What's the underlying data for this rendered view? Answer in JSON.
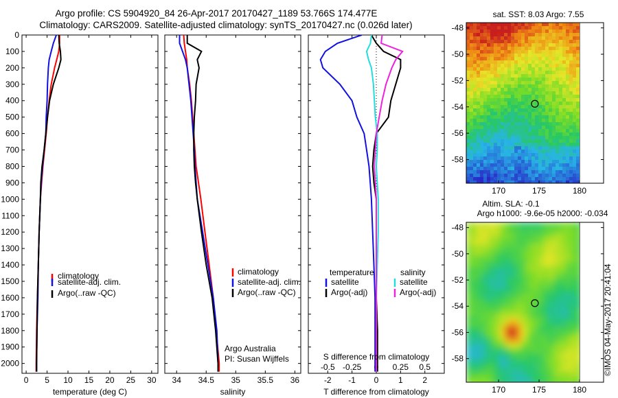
{
  "header": {
    "line1": "Argo profile: CS 5904920_84 26-Apr-2017 20170427_1189 53.766S 174.477E",
    "line2": "Climatology: CARS2009. Satellite-adjusted climatology: synTS_20170427.nc (0.026d later)"
  },
  "colors": {
    "climatology": "#ff0000",
    "satellite": "#1010e0",
    "argo": "#000000",
    "satellite_salinity": "#22dddd",
    "argo_salinity": "#ee22dd"
  },
  "credit": "©IMOS 04-May-2017 20:41:04",
  "depth_ticks": [
    0,
    100,
    200,
    300,
    400,
    500,
    600,
    700,
    800,
    900,
    1000,
    1100,
    1200,
    1300,
    1400,
    1500,
    1600,
    1700,
    1800,
    1900,
    2000
  ],
  "chart_data": [
    {
      "type": "line",
      "id": "temperature",
      "xlabel": "temperature (deg C)",
      "ylabel": "",
      "xlim": [
        -1,
        31.5
      ],
      "ylim": [
        2060,
        0
      ],
      "xticks": [
        0,
        5,
        10,
        15,
        20,
        25,
        30
      ],
      "legend": {
        "placement": "bottom-middle",
        "entries": [
          "climatology",
          "satellite-adj. clim.",
          "Argo(..raw -QC)"
        ]
      },
      "y": [
        0,
        50,
        100,
        150,
        200,
        300,
        400,
        500,
        600,
        700,
        800,
        900,
        1000,
        1200,
        1400,
        1600,
        1800,
        2000,
        2050
      ],
      "series": [
        {
          "name": "climatology",
          "values": [
            8.0,
            8.0,
            7.8,
            7.3,
            6.8,
            6.0,
            5.5,
            5.1,
            4.8,
            4.4,
            4.0,
            3.7,
            3.4,
            3.1,
            2.9,
            2.7,
            2.5,
            2.4,
            2.4
          ]
        },
        {
          "name": "satellite-adj. clim.",
          "values": [
            7.2,
            6.5,
            6.0,
            5.5,
            5.3,
            5.1,
            5.0,
            4.8,
            4.7,
            4.3,
            3.9,
            3.6,
            3.4,
            3.1,
            2.9,
            2.8,
            2.6,
            2.5,
            2.5
          ]
        },
        {
          "name": "Argo(..raw -QC)",
          "values": [
            7.8,
            7.9,
            8.2,
            8.3,
            7.8,
            6.5,
            5.6,
            5.1,
            4.7,
            4.3,
            3.8,
            3.5,
            3.4,
            3.1,
            2.9,
            2.7,
            2.6,
            2.5,
            2.5
          ]
        }
      ]
    },
    {
      "type": "line",
      "id": "salinity",
      "xlabel": "salinity",
      "ylabel": "",
      "xlim": [
        33.8,
        36.1
      ],
      "ylim": [
        2060,
        0
      ],
      "xticks": [
        34,
        34.5,
        35,
        35.5,
        36
      ],
      "legend": {
        "placement": "bottom-middle",
        "entries": [
          "climatology",
          "satellite-adj. clim.",
          "Argo(..raw -QC)"
        ]
      },
      "annotation": [
        "Argo Australia",
        "PI: Susan Wijffels"
      ],
      "y": [
        0,
        50,
        100,
        150,
        200,
        300,
        400,
        500,
        600,
        700,
        800,
        900,
        1000,
        1200,
        1400,
        1600,
        1800,
        2000,
        2050
      ],
      "series": [
        {
          "name": "climatology",
          "values": [
            34.12,
            34.13,
            34.15,
            34.17,
            34.18,
            34.22,
            34.25,
            34.27,
            34.29,
            34.31,
            34.33,
            34.37,
            34.41,
            34.48,
            34.55,
            34.62,
            34.67,
            34.72,
            34.72
          ]
        },
        {
          "name": "satellite-adj. clim.",
          "values": [
            34.05,
            34.05,
            34.1,
            34.15,
            34.18,
            34.21,
            34.24,
            34.26,
            34.28,
            34.3,
            34.31,
            34.33,
            34.35,
            34.44,
            34.53,
            34.62,
            34.68,
            34.7,
            34.7
          ]
        },
        {
          "name": "Argo(..raw -QC)",
          "values": [
            34.18,
            34.18,
            34.42,
            34.35,
            34.38,
            34.33,
            34.32,
            34.3,
            34.29,
            34.29,
            34.3,
            34.32,
            34.35,
            34.42,
            34.5,
            34.6,
            34.66,
            34.7,
            34.7
          ]
        }
      ]
    },
    {
      "type": "line",
      "id": "difference",
      "xlabel": "T difference from climatology",
      "top_axis_label": "S difference from climatology",
      "ylabel": "",
      "xlim": [
        -2.8,
        2.8
      ],
      "ylim": [
        2060,
        0
      ],
      "xticks": [
        -2,
        -1,
        0,
        1,
        2
      ],
      "top_ticks": [
        "-0.5",
        "-0.25",
        "0",
        "0.25",
        "0.5"
      ],
      "legend": {
        "placement": "bottom",
        "groups": [
          {
            "heading": "temperature",
            "entries": [
              "satellite",
              "Argo(-adj)"
            ]
          },
          {
            "heading": "salinity",
            "entries": [
              "satellite",
              "Argo(-adj)"
            ]
          }
        ]
      },
      "y": [
        0,
        50,
        100,
        150,
        200,
        300,
        400,
        500,
        600,
        700,
        800,
        900,
        1000,
        1200,
        1400,
        1600,
        1800,
        2000,
        2050
      ],
      "series": [
        {
          "name": "satellite",
          "group": "temperature",
          "values": [
            -0.6,
            -1.6,
            -2.1,
            -2.3,
            -2.2,
            -1.5,
            -1.0,
            -0.8,
            -0.5,
            -0.4,
            -0.3,
            -0.25,
            -0.2,
            -0.15,
            -0.1,
            -0.05,
            -0.05,
            -0.05,
            -0.05
          ]
        },
        {
          "name": "Argo(-adj)",
          "group": "temperature",
          "values": [
            -0.2,
            0.0,
            0.3,
            1.0,
            1.0,
            0.8,
            0.6,
            0.5,
            0.0,
            -0.1,
            -0.15,
            -0.1,
            0.0,
            0.0,
            0.0,
            0.0,
            0.05,
            0.05,
            0.05
          ]
        },
        {
          "name": "satellite",
          "group": "salinity",
          "values": [
            -0.05,
            -0.06,
            -0.1,
            -0.08,
            -0.05,
            -0.03,
            -0.02,
            -0.01,
            0.01,
            0.01,
            0.0,
            0.01,
            0.02,
            0.02,
            0.01,
            0.0,
            0.0,
            0.0,
            0.0
          ]
        },
        {
          "name": "Argo(-adj)",
          "group": "salinity",
          "values": [
            0.06,
            0.05,
            0.27,
            0.2,
            0.16,
            0.1,
            0.06,
            0.03,
            0.0,
            -0.01,
            -0.02,
            -0.01,
            0.0,
            0.0,
            0.0,
            0.0,
            0.0,
            0.0,
            0.0
          ]
        }
      ]
    },
    {
      "type": "heatmap",
      "id": "sst-map",
      "title": "sat. SST: 8.03  Argo: 7.55",
      "xlim": [
        166,
        180
      ],
      "ylim": [
        -59.8,
        -47.6
      ],
      "xticks": [
        170,
        175,
        180
      ],
      "yticks": [
        -48,
        -50,
        -52,
        -54,
        -56,
        -58
      ],
      "marker": {
        "lon": 174.477,
        "lat": -53.766
      },
      "colorscale": "rainbow"
    },
    {
      "type": "heatmap",
      "id": "sla-map",
      "title": "Altim. SLA: -0.1",
      "subtitle": "Argo h1000: -9.6e-05 h2000: -0.034",
      "xlim": [
        166,
        180
      ],
      "ylim": [
        -59.8,
        -47.6
      ],
      "xticks": [
        170,
        175,
        180
      ],
      "yticks": [
        -48,
        -50,
        -52,
        -54,
        -56,
        -58
      ],
      "marker": {
        "lon": 174.477,
        "lat": -53.766
      },
      "colorscale": "rainbow"
    }
  ]
}
